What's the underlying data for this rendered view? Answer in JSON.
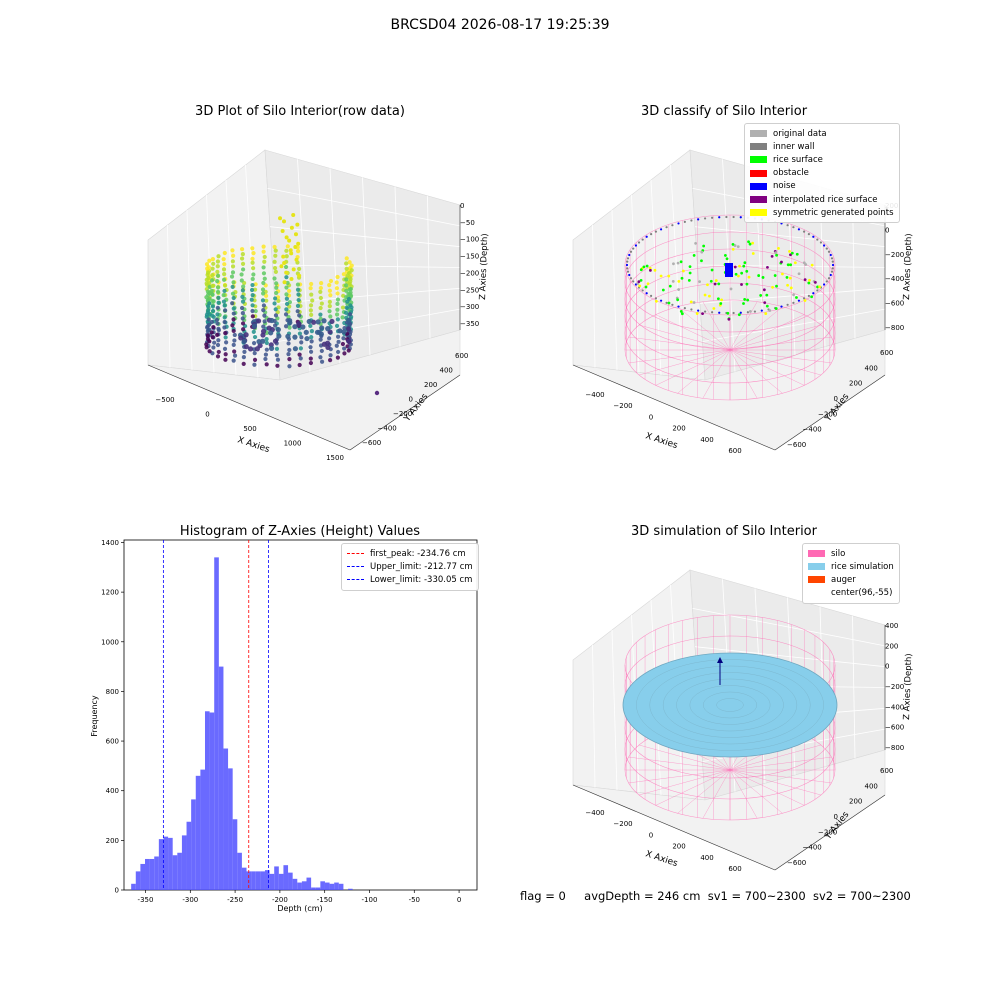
{
  "suptitle": "BRCSD04 2026-08-17 19:25:39",
  "footer": {
    "flag": "flag = 0",
    "avg_depth": "avgDepth = 246 cm",
    "sv1": "sv1 = 700~2300",
    "sv2": "sv2 = 700~2300"
  },
  "colors": {
    "histogram_bar": "#5050ff",
    "peak_line": "#ff0000",
    "limit_line": "#0000ff",
    "original_data": "#b0b0b0",
    "inner_wall": "#808080",
    "rice_surface": "#00ff00",
    "obstacle": "#ff0000",
    "noise": "#0000ff",
    "interpolated_rice_surface": "#800080",
    "symmetric_generated_points": "#ffff00",
    "silo": "#ff69b4",
    "rice_simulation": "#87ceeb",
    "auger": "#ff4500"
  },
  "chart_data": [
    {
      "type": "scatter",
      "dimensions": 3,
      "title": "3D Plot of Silo Interior(row data)",
      "xlabel": "X Axies",
      "ylabel": "Y Axies",
      "zlabel": "Z Axies (Depth)",
      "x_ticks": [
        "−500",
        "0",
        "500",
        "1000",
        "1500"
      ],
      "y_ticks": [
        "−600",
        "−400",
        "−200",
        "0",
        "200",
        "400",
        "600"
      ],
      "z_ticks": [
        "0",
        "−50",
        "−100",
        "−150",
        "−200",
        "−250",
        "−300",
        "−350"
      ],
      "xlim": [
        -700,
        1500
      ],
      "ylim": [
        -700,
        700
      ],
      "zlim": [
        -380,
        10
      ],
      "colormap": "viridis"
    },
    {
      "type": "scatter",
      "dimensions": 3,
      "title": "3D classify of Silo Interior",
      "xlabel": "X Axies",
      "ylabel": "Y Axies",
      "zlabel": "Z Axies (Depth)",
      "x_ticks": [
        "−400",
        "−200",
        "0",
        "200",
        "400",
        "600"
      ],
      "y_ticks": [
        "−600",
        "−400",
        "−200",
        "0",
        "200",
        "400",
        "600"
      ],
      "z_ticks": [
        "200",
        "0",
        "−200",
        "−400",
        "−600",
        "−800"
      ],
      "legend_position": "upper-right",
      "legend": [
        {
          "label": "original data",
          "color": "#b0b0b0"
        },
        {
          "label": "inner wall",
          "color": "#808080"
        },
        {
          "label": "rice surface",
          "color": "#00ff00"
        },
        {
          "label": "obstacle",
          "color": "#ff0000"
        },
        {
          "label": "noise",
          "color": "#0000ff"
        },
        {
          "label": "interpolated rice surface",
          "color": "#800080"
        },
        {
          "label": "symmetric generated points",
          "color": "#ffff00"
        }
      ]
    },
    {
      "type": "bar",
      "title": "Histogram of Z-Axies (Height) Values",
      "xlabel": "Depth (cm)",
      "ylabel": "Frequency",
      "xlim": [
        -374,
        20
      ],
      "ylim": [
        0,
        1410
      ],
      "x_ticks": [
        -350,
        -300,
        -250,
        -200,
        -150,
        -100,
        -50,
        0
      ],
      "y_ticks": [
        0,
        200,
        400,
        600,
        800,
        1000,
        1200,
        1400
      ],
      "bin_width": 5.15,
      "bin_start": -366,
      "values": [
        25,
        75,
        105,
        125,
        125,
        135,
        205,
        215,
        210,
        140,
        150,
        220,
        275,
        365,
        460,
        485,
        720,
        715,
        1340,
        900,
        570,
        490,
        285,
        150,
        90,
        75,
        75,
        75,
        75,
        80,
        65,
        95,
        65,
        100,
        70,
        45,
        30,
        35,
        50,
        10,
        10,
        35,
        30,
        25,
        30,
        25,
        0,
        5
      ],
      "reference_lines": [
        {
          "label": "first_peak: -234.76 cm",
          "x": -234.76,
          "color": "#ff0000"
        },
        {
          "label": "Upper_limit: -212.77 cm",
          "x": -212.77,
          "color": "#0000ff"
        },
        {
          "label": "Lower_limit: -330.05 cm",
          "x": -330.05,
          "color": "#0000ff"
        }
      ],
      "legend_position": "upper-right"
    },
    {
      "type": "scatter",
      "dimensions": 3,
      "title": "3D simulation of Silo Interior",
      "xlabel": "X Axies",
      "ylabel": "Y Axies",
      "zlabel": "Z Axies (Depth)",
      "x_ticks": [
        "−400",
        "−200",
        "0",
        "200",
        "400",
        "600"
      ],
      "y_ticks": [
        "−600",
        "−400",
        "−200",
        "0",
        "200",
        "400",
        "600"
      ],
      "z_ticks": [
        "400",
        "200",
        "0",
        "−200",
        "−400",
        "−600",
        "−800"
      ],
      "legend_position": "upper-right",
      "legend": [
        {
          "label": "silo",
          "color": "#ff69b4"
        },
        {
          "label": "rice simulation",
          "color": "#87ceeb"
        },
        {
          "label": "auger",
          "color": "#ff4500"
        },
        {
          "label": "center(96,-55)",
          "color": ""
        }
      ]
    }
  ]
}
